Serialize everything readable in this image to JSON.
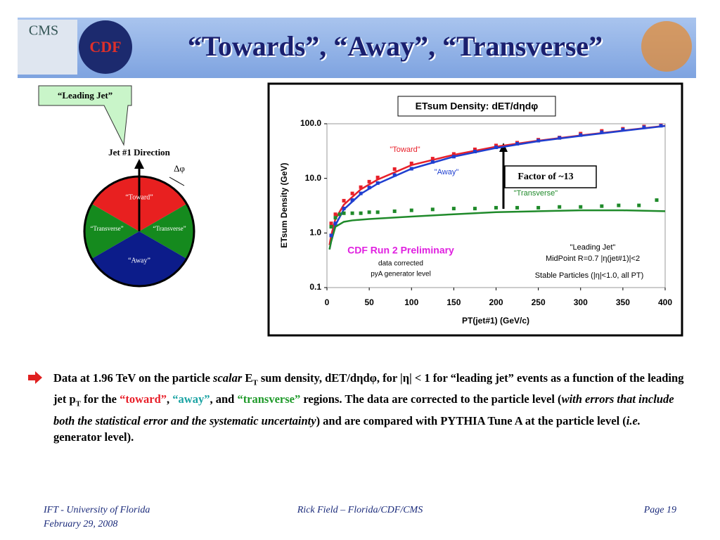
{
  "header": {
    "title": "“Towards”, “Away”, “Transverse”",
    "logos": [
      "CMS",
      "CDF"
    ]
  },
  "diagram": {
    "callout": "“Leading Jet”",
    "direction": "Jet #1 Direction",
    "angle": "Δφ",
    "regions": [
      "“Toward”",
      "“Transverse”",
      "“Transverse”",
      "“Away”"
    ]
  },
  "chart_data": {
    "type": "scatter",
    "title": "ETsum Density: dET/dηdφ",
    "x_label": "PT(jet#1)  (GeV/c)",
    "y_label": "ETsum Density (GeV)",
    "xlim": [
      0,
      400
    ],
    "xticks": [
      0,
      50,
      100,
      150,
      200,
      250,
      300,
      350,
      400
    ],
    "ylim": [
      0.1,
      100
    ],
    "log_y": true,
    "yticks": [
      0.1,
      {
        "value": 1,
        "label": "1.0"
      },
      {
        "value": 10,
        "label": "10.0"
      },
      {
        "value": 100,
        "label": "100.0"
      }
    ],
    "series": [
      {
        "name": "\"Toward\"",
        "color": "#e8202a",
        "x": [
          5,
          10,
          20,
          30,
          40,
          50,
          60,
          80,
          100,
          125,
          150,
          175,
          200,
          225,
          250,
          275,
          300,
          325,
          350,
          375,
          395
        ],
        "values": [
          1.5,
          2.2,
          3.9,
          5.3,
          6.9,
          8.7,
          10.4,
          14.8,
          18.8,
          23,
          28,
          34,
          40,
          45,
          51,
          56,
          66,
          74,
          81,
          89,
          94
        ]
      },
      {
        "name": "\"Away\"",
        "color": "#1f3fd0",
        "x": [
          5,
          10,
          20,
          30,
          40,
          50,
          60,
          80,
          100,
          125,
          150,
          175,
          200,
          225,
          250,
          275,
          300,
          325,
          350,
          375,
          395
        ],
        "values": [
          0.9,
          1.5,
          2.8,
          4.0,
          5.3,
          6.8,
          8.2,
          11.5,
          15,
          20,
          25,
          31,
          37,
          43,
          49,
          55,
          62,
          70,
          78,
          86,
          92
        ]
      },
      {
        "name": "\"Transverse\"",
        "color": "#1f8a2a",
        "x": [
          5,
          10,
          15,
          20,
          30,
          40,
          50,
          60,
          80,
          100,
          125,
          150,
          175,
          200,
          225,
          250,
          275,
          300,
          325,
          345,
          369,
          390
        ],
        "values": [
          1.3,
          1.9,
          2.2,
          2.3,
          2.3,
          2.3,
          2.4,
          2.4,
          2.5,
          2.6,
          2.7,
          2.8,
          2.8,
          2.9,
          2.9,
          2.9,
          3.0,
          3.0,
          3.1,
          3.2,
          3.2,
          4.0
        ]
      }
    ],
    "curves": [
      {
        "color": "#e8202a",
        "x": [
          3,
          5,
          10,
          20,
          40,
          60,
          100,
          150,
          200,
          250,
          300,
          350,
          400
        ],
        "values": [
          0.6,
          0.9,
          1.8,
          3.3,
          6.3,
          9.5,
          17.5,
          27,
          38,
          49,
          61,
          75,
          92
        ]
      },
      {
        "color": "#1f3fd0",
        "x": [
          3,
          5,
          10,
          20,
          40,
          60,
          100,
          150,
          200,
          250,
          300,
          350,
          400
        ],
        "values": [
          0.5,
          0.7,
          1.4,
          2.7,
          5.2,
          8,
          15,
          25,
          36,
          48,
          60,
          74,
          91
        ]
      },
      {
        "color": "#1f8a2a",
        "x": [
          3,
          5,
          10,
          20,
          30,
          50,
          100,
          150,
          200,
          250,
          300,
          350,
          400
        ],
        "values": [
          0.5,
          0.7,
          1.3,
          1.6,
          1.7,
          1.8,
          2.0,
          2.2,
          2.4,
          2.5,
          2.6,
          2.6,
          2.5
        ]
      }
    ],
    "annotations": {
      "factor": "Factor of ~13",
      "prelim": "CDF Run 2 Preliminary",
      "corrected": "data corrected",
      "generator": "pyA generator level",
      "leading_jet": "\"Leading Jet\"",
      "midpoint": "MidPoint R=0.7 |η(jet#1)|<2",
      "stable": "Stable Particles (|η|<1.0, all PT)"
    }
  },
  "bullet": [
    "Data at 1.96 TeV on the particle ",
    "scalar",
    " E",
    "T",
    " sum density, dET/dηdφ, for |η| < 1 for “leading jet” events as a function of the leading jet p",
    "T",
    " for the ",
    "“toward”",
    ", ",
    "“away”",
    ", and ",
    "“transverse”",
    " regions.  The data are corrected to the particle level (",
    "with errors that include both the statistical error and the systematic uncertainty",
    ") and are compared with PYTHIA Tune A at the particle level (",
    "i.e.",
    " generator level)."
  ],
  "footer": {
    "left": "IFT - University of Florida",
    "date": "February 29, 2008",
    "center": "Rick Field – Florida/CDF/CMS",
    "page": "Page 19"
  }
}
